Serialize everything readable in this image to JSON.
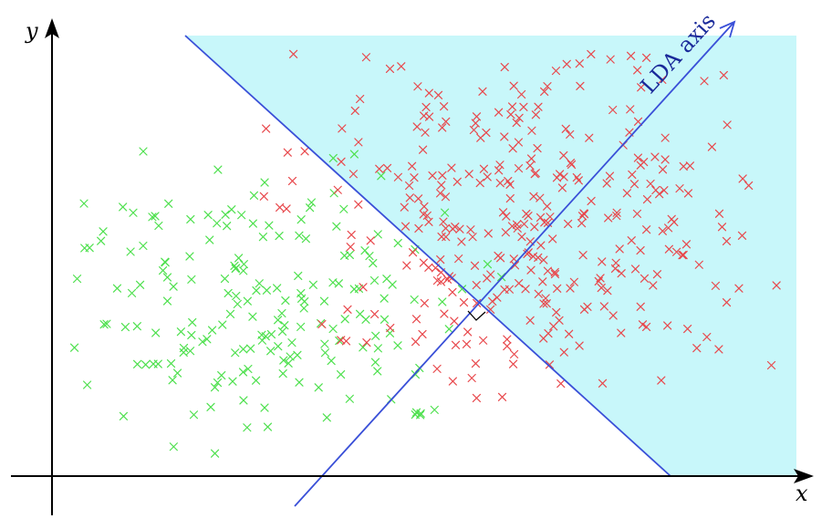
{
  "labels": {
    "x_axis": "x",
    "y_axis": "y",
    "lda_axis": "LDA axis"
  },
  "colors": {
    "region": "#c8f7fa",
    "axes": "#000000",
    "boundary": "#3a50d8",
    "lda_axis": "#3a50d8",
    "lda_text": "#1a2a9a",
    "class_red": "#e8484c",
    "class_green": "#4ee04e"
  },
  "icons": {
    "point_marker": "x-mark-icon",
    "arrow": "arrowhead-icon",
    "right_angle": "right-angle-marker-icon"
  },
  "classes": [
    "red",
    "green"
  ]
}
